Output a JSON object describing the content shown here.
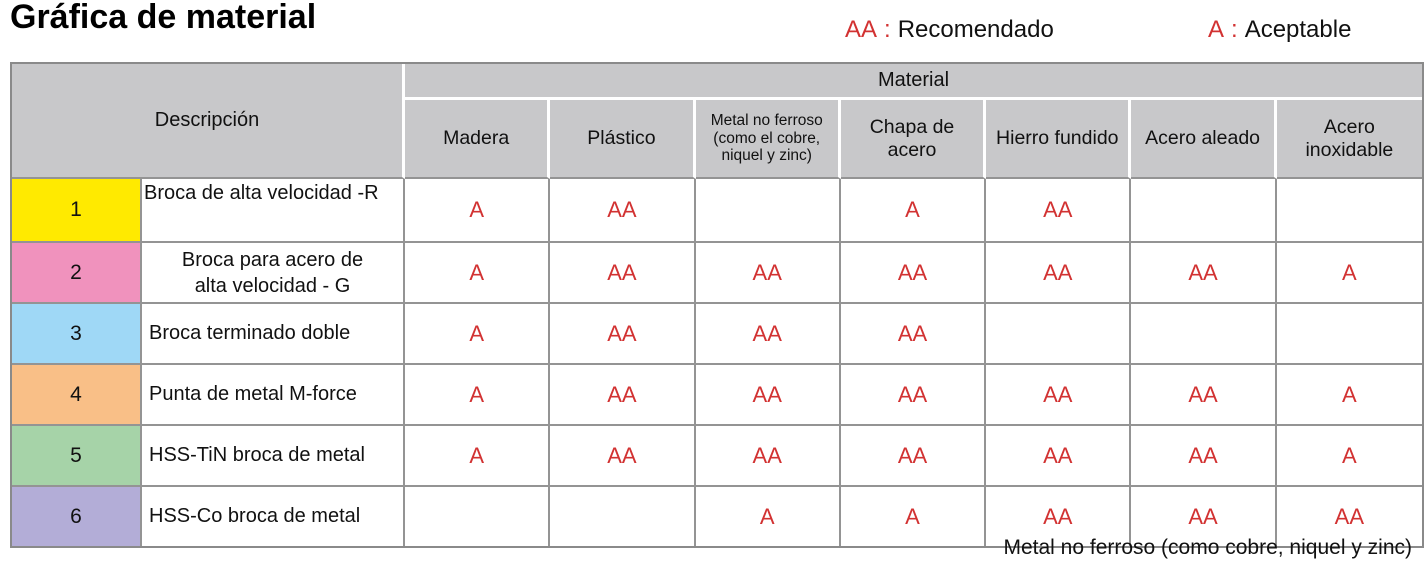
{
  "page": {
    "title": "Gráfica de material",
    "footnote": "Metal no ferroso (como cobre, niquel y zinc)"
  },
  "legend": {
    "separator": ":",
    "recommended": {
      "key": "AA",
      "label": "Recomendado"
    },
    "acceptable": {
      "key": "A",
      "label": "Aceptable"
    }
  },
  "table": {
    "description_header": "Descripción",
    "material_header": "Material",
    "columns": [
      "Madera",
      "Plástico",
      "Metal no ferroso (como el cobre, niquel y zinc)",
      "Chapa de acero",
      "Hierro fundido",
      "Acero aleado",
      "Acero inoxidable"
    ],
    "rows": [
      {
        "num": "1",
        "color": "#ffea00",
        "description": "Broca de alta velocidad -R",
        "values": [
          "A",
          "AA",
          "",
          "A",
          "AA",
          "",
          ""
        ]
      },
      {
        "num": "2",
        "color": "#f092bd",
        "description": "Broca para acero de alta velocidad - G",
        "values": [
          "A",
          "AA",
          "AA",
          "AA",
          "AA",
          "AA",
          "A"
        ]
      },
      {
        "num": "3",
        "color": "#9fd8f6",
        "description": "Broca terminado doble",
        "values": [
          "A",
          "AA",
          "AA",
          "AA",
          "",
          "",
          ""
        ]
      },
      {
        "num": "4",
        "color": "#f9bf87",
        "description": "Punta de metal M-force",
        "values": [
          "A",
          "AA",
          "AA",
          "AA",
          "AA",
          "AA",
          "A"
        ]
      },
      {
        "num": "5",
        "color": "#a6d3a8",
        "description": "HSS-TiN broca de metal",
        "values": [
          "A",
          "AA",
          "AA",
          "AA",
          "AA",
          "AA",
          "A"
        ]
      },
      {
        "num": "6",
        "color": "#b3add7",
        "description": "HSS-Co broca de metal",
        "values": [
          "",
          "",
          "A",
          "A",
          "AA",
          "AA",
          "AA"
        ]
      }
    ],
    "colors": {
      "accent_red": "#d23232",
      "header_bg": "#c8c8ca",
      "grid_border": "#949494"
    }
  },
  "chart_data": {
    "type": "table",
    "title": "Gráfica de material",
    "legend": {
      "AA": "Recomendado",
      "A": "Aceptable"
    },
    "columns": [
      "Madera",
      "Plástico",
      "Metal no ferroso (como el cobre, niquel y zinc)",
      "Chapa de acero",
      "Hierro fundido",
      "Acero aleado",
      "Acero inoxidable"
    ],
    "rows": [
      {
        "id": 1,
        "description": "Broca de alta velocidad -R",
        "ratings": [
          "A",
          "AA",
          "",
          "A",
          "AA",
          "",
          ""
        ]
      },
      {
        "id": 2,
        "description": "Broca para acero de alta velocidad - G",
        "ratings": [
          "A",
          "AA",
          "AA",
          "AA",
          "AA",
          "AA",
          "A"
        ]
      },
      {
        "id": 3,
        "description": "Broca terminado doble",
        "ratings": [
          "A",
          "AA",
          "AA",
          "AA",
          "",
          "",
          ""
        ]
      },
      {
        "id": 4,
        "description": "Punta de metal M-force",
        "ratings": [
          "A",
          "AA",
          "AA",
          "AA",
          "AA",
          "AA",
          "A"
        ]
      },
      {
        "id": 5,
        "description": "HSS-TiN broca de metal",
        "ratings": [
          "A",
          "AA",
          "AA",
          "AA",
          "AA",
          "AA",
          "A"
        ]
      },
      {
        "id": 6,
        "description": "HSS-Co broca de metal",
        "ratings": [
          "",
          "",
          "A",
          "A",
          "AA",
          "AA",
          "AA"
        ]
      }
    ],
    "footnote": "Metal no ferroso (como cobre, niquel y zinc)"
  }
}
